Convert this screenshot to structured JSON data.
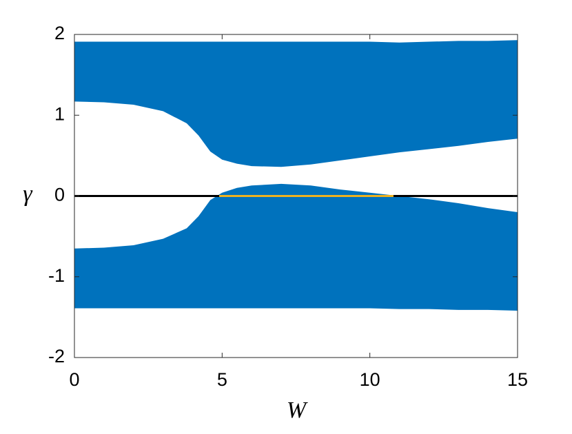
{
  "chart_data": {
    "type": "area",
    "xlabel": "W",
    "ylabel": "γ",
    "x": [
      0,
      1,
      2,
      3,
      3.8,
      4.2,
      4.6,
      5,
      5.5,
      6,
      7,
      8,
      9,
      10,
      11,
      12,
      13,
      14,
      15
    ],
    "bands": [
      {
        "color": "#0072bd",
        "upper": [
          1.91,
          1.91,
          1.91,
          1.91,
          1.91,
          1.91,
          1.91,
          1.91,
          1.91,
          1.91,
          1.91,
          1.91,
          1.91,
          1.91,
          1.9,
          1.91,
          1.92,
          1.92,
          1.93
        ],
        "lower": [
          1.17,
          1.16,
          1.13,
          1.05,
          0.9,
          0.75,
          0.55,
          0.45,
          0.4,
          0.37,
          0.36,
          0.39,
          0.44,
          0.49,
          0.54,
          0.58,
          0.62,
          0.67,
          0.71
        ]
      },
      {
        "color": "#0072bd",
        "upper": [
          -0.65,
          -0.64,
          -0.61,
          -0.53,
          -0.4,
          -0.25,
          -0.05,
          0.04,
          0.1,
          0.13,
          0.15,
          0.13,
          0.08,
          0.04,
          0,
          -0.04,
          -0.09,
          -0.15,
          -0.2
        ],
        "lower": [
          -1.39,
          -1.39,
          -1.39,
          -1.39,
          -1.39,
          -1.39,
          -1.39,
          -1.39,
          -1.39,
          -1.39,
          -1.39,
          -1.39,
          -1.39,
          -1.39,
          -1.4,
          -1.4,
          -1.41,
          -1.41,
          -1.42
        ]
      }
    ],
    "lines": [
      {
        "color": "#000000",
        "x": [
          0,
          15
        ],
        "values": [
          0,
          0
        ]
      },
      {
        "color": "#edb120",
        "x": [
          4.9,
          10.8
        ],
        "values": [
          0,
          0
        ]
      }
    ],
    "xlim": [
      0,
      15
    ],
    "xticks": [
      0,
      5,
      10,
      15
    ],
    "ylim": [
      -2,
      2
    ],
    "yticks": [
      -2,
      -1,
      0,
      1,
      2
    ]
  }
}
